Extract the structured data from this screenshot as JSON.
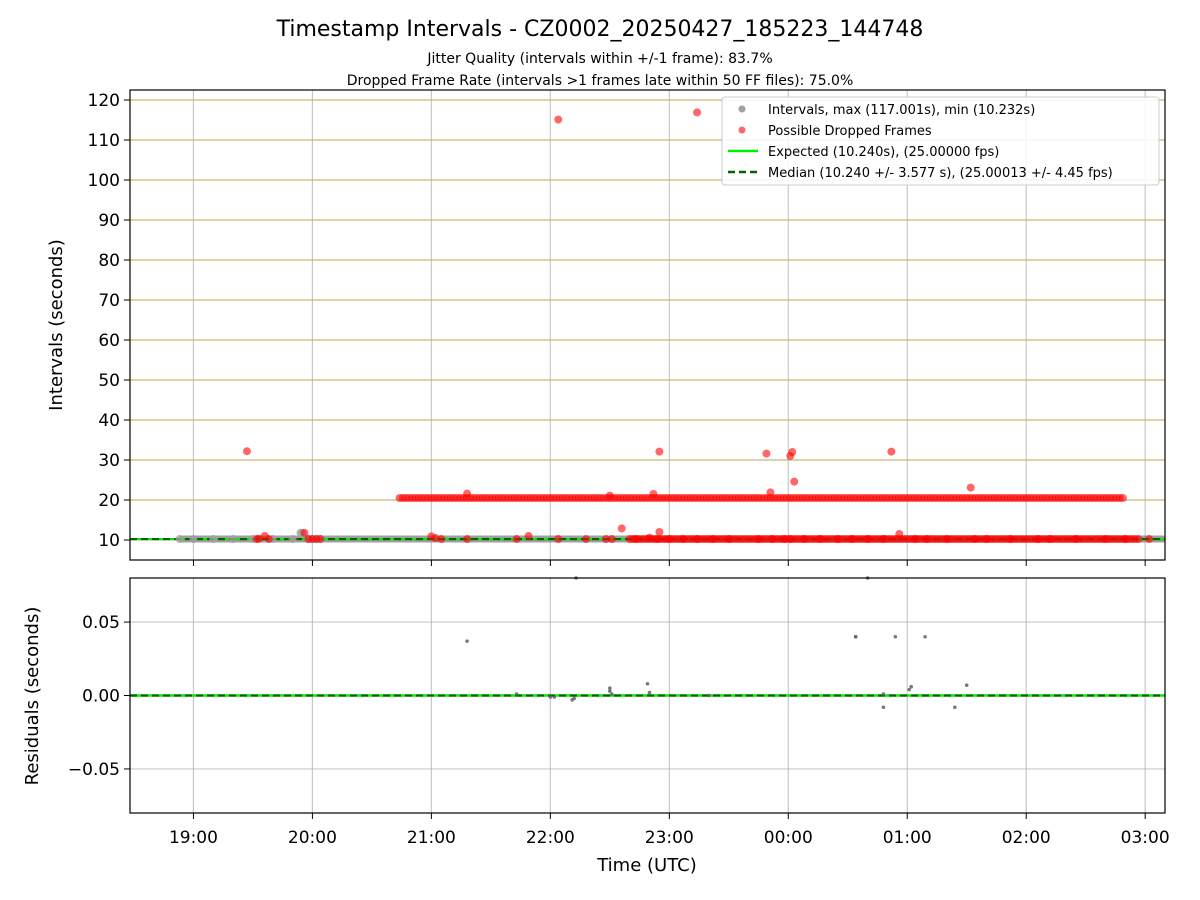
{
  "chart_data": [
    {
      "type": "scatter",
      "title": "Timestamp Intervals - CZ0002_20250427_185223_144748",
      "subtitle_lines": [
        "Jitter Quality (intervals within +/-1 frame): 83.7%",
        "Dropped Frame Rate (intervals >1 frames late within 50 FF files): 75.0%"
      ],
      "xlabel": "",
      "ylabel": "Intervals (seconds)",
      "x_axis": {
        "kind": "time",
        "range": [
          "18:28",
          "03:10"
        ],
        "tick_labels": [
          "19:00",
          "20:00",
          "21:00",
          "22:00",
          "23:00",
          "00:00",
          "01:00",
          "02:00",
          "03:00"
        ]
      },
      "ylim": [
        5,
        122.5
      ],
      "y_ticks": [
        10,
        20,
        30,
        40,
        50,
        60,
        70,
        80,
        90,
        100,
        110,
        120
      ],
      "grid": true,
      "legend": {
        "placement": "top-right",
        "entries": [
          "Intervals, max (117.001s), min (10.232s)",
          "Possible Dropped Frames",
          "Expected (10.240s), (25.00000 fps)",
          "Median (10.240 +/- 3.577 s), (25.00013 +/- 4.45 fps)"
        ]
      },
      "expected": 10.24,
      "median": 10.24,
      "series": [
        {
          "role": "intervals",
          "x": [
            "18:53",
            "19:00",
            "19:10",
            "19:20",
            "19:30",
            "19:40",
            "19:50",
            "19:54",
            "19:55",
            "19:58",
            "20:00",
            "20:02",
            "20:04"
          ],
          "y": [
            10.24,
            10.24,
            10.24,
            10.24,
            10.24,
            10.24,
            10.24,
            11.8,
            11.7,
            10.24,
            10.24,
            10.24,
            10.24
          ]
        },
        {
          "role": "dropped",
          "x": [
            "19:27",
            "19:32",
            "19:33",
            "19:36",
            "19:38",
            "19:56",
            "19:58",
            "20:00",
            "20:02",
            "20:04",
            "21:00",
            "21:02",
            "21:05",
            "21:18",
            "21:43",
            "21:49",
            "22:04",
            "22:18",
            "22:28",
            "22:31",
            "22:36",
            "22:43",
            "22:50",
            "22:54",
            "23:00",
            "23:07",
            "23:14",
            "23:22",
            "23:30",
            "23:45",
            "23:52",
            "23:58",
            "00:01",
            "00:08",
            "00:16",
            "00:25",
            "00:32",
            "00:40",
            "00:48",
            "00:56",
            "01:04",
            "01:10",
            "01:20",
            "01:34",
            "01:40",
            "01:52",
            "02:06",
            "02:12",
            "02:25",
            "02:40",
            "02:50",
            "03:02",
            "22:04",
            "23:14",
            "22:55",
            "23:49",
            "00:01",
            "00:02",
            "00:03",
            "00:52",
            "23:51",
            "01:32",
            "21:18",
            "22:30",
            "22:52",
            "22:55"
          ],
          "y": [
            32.2,
            10.24,
            10.3,
            11.0,
            10.24,
            11.8,
            10.24,
            10.24,
            10.24,
            10.24,
            10.9,
            10.5,
            10.24,
            10.24,
            10.24,
            11.0,
            10.24,
            10.24,
            10.24,
            10.24,
            12.9,
            10.24,
            10.6,
            10.24,
            10.24,
            10.24,
            10.24,
            10.24,
            10.24,
            10.24,
            10.24,
            10.24,
            10.24,
            10.24,
            10.24,
            10.24,
            10.24,
            10.24,
            10.24,
            11.5,
            10.24,
            10.24,
            10.24,
            10.24,
            10.24,
            10.24,
            10.24,
            10.24,
            10.24,
            10.24,
            10.24,
            10.24,
            115.1,
            116.9,
            32.1,
            31.6,
            31.0,
            32.0,
            24.6,
            32.1,
            21.9,
            23.1,
            21.6,
            21.1,
            21.5,
            12.0
          ]
        },
        {
          "role": "dropped-band-20s",
          "x_start": "20:44",
          "x_end": "02:50",
          "y": 20.5
        },
        {
          "role": "dropped-band-10s",
          "x_start": "22:40",
          "x_end": "02:57",
          "y": 10.24
        }
      ]
    },
    {
      "type": "scatter",
      "title": "",
      "xlabel": "Time (UTC)",
      "ylabel": "Residuals (seconds)",
      "x_axis": {
        "kind": "time",
        "range": [
          "18:28",
          "03:10"
        ],
        "tick_labels": [
          "19:00",
          "20:00",
          "21:00",
          "22:00",
          "23:00",
          "00:00",
          "01:00",
          "02:00",
          "03:00"
        ]
      },
      "ylim": [
        -0.08,
        0.08
      ],
      "y_ticks": [
        0.05,
        0.0,
        -0.05
      ],
      "y_tick_labels": [
        "0.05",
        "0.00",
        "−0.05"
      ],
      "grid": true,
      "series": [
        {
          "role": "residuals",
          "x": [
            "21:18",
            "22:02",
            "22:11",
            "22:12",
            "22:30",
            "22:30",
            "22:31",
            "22:49",
            "22:50",
            "00:34",
            "00:34",
            "00:48",
            "00:48",
            "00:54",
            "01:01",
            "01:02",
            "01:09",
            "01:24",
            "01:30",
            "22:13",
            "00:40",
            "21:43",
            "22:00",
            "23:20"
          ],
          "y": [
            0.037,
            -0.001,
            -0.003,
            -0.002,
            0.003,
            0.005,
            0.001,
            0.008,
            0.002,
            0.04,
            0.04,
            -0.008,
            0.001,
            0.04,
            0.004,
            0.006,
            0.04,
            -0.008,
            0.007,
            0.085,
            0.085,
            0.001,
            -0.001,
            0.0
          ]
        }
      ]
    }
  ]
}
